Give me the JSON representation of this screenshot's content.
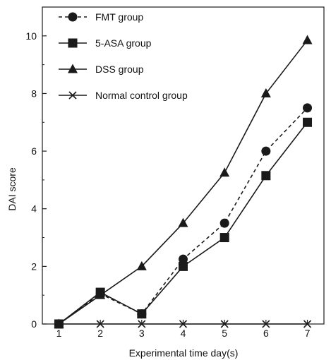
{
  "chart_data": {
    "type": "line",
    "xlabel": "Experimental time day(s)",
    "ylabel": "DAI score",
    "x": [
      1,
      2,
      3,
      4,
      5,
      6,
      7
    ],
    "xlim": [
      0.6,
      7.4
    ],
    "ylim": [
      0,
      11
    ],
    "yticks": [
      0,
      2,
      4,
      6,
      8,
      10
    ],
    "grid": false,
    "legend_position": "top-left",
    "series": [
      {
        "name": "FMT group",
        "marker": "circle",
        "dash": "dashed",
        "values": [
          0,
          1.05,
          0.35,
          2.25,
          3.5,
          6.0,
          7.5
        ]
      },
      {
        "name": "5-ASA group",
        "marker": "square",
        "dash": "solid",
        "values": [
          0,
          1.1,
          0.35,
          2.0,
          3.0,
          5.15,
          7.0
        ]
      },
      {
        "name": "DSS group",
        "marker": "triangle",
        "dash": "solid",
        "values": [
          0,
          1.0,
          2.0,
          3.5,
          5.25,
          8.0,
          9.85
        ]
      },
      {
        "name": "Normal control group",
        "marker": "x",
        "dash": "solid",
        "values": [
          0,
          0,
          0,
          0,
          0,
          0,
          0
        ]
      }
    ],
    "colors": {
      "line": "#1a1a1a",
      "axis": "#1a1a1a"
    }
  }
}
